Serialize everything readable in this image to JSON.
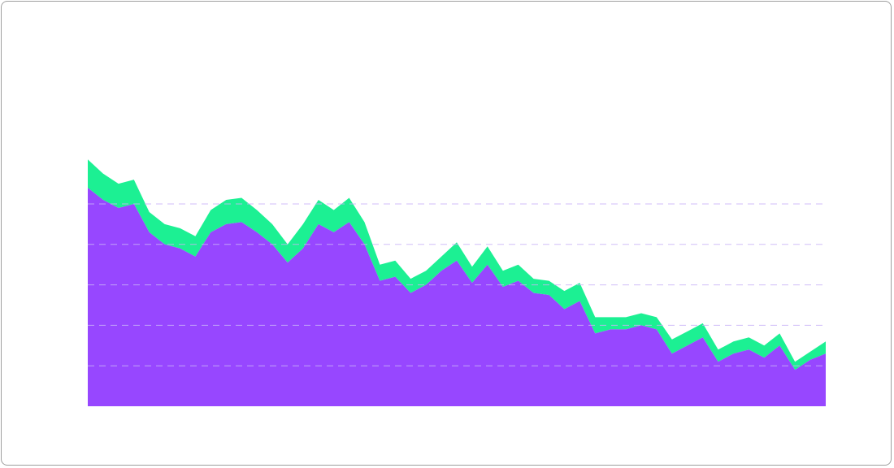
{
  "chart_data": {
    "type": "area",
    "stacked": true,
    "title": "",
    "xlabel": "",
    "ylabel": "",
    "grid": true,
    "legend": "none",
    "colors": {
      "bottom_series": "#9747ff",
      "top_series": "#1cf093",
      "gridline": "#c9b3f7",
      "frame_border": "#9e9e9e",
      "background": "#ffffff"
    },
    "x": [
      0,
      1,
      2,
      3,
      4,
      5,
      6,
      7,
      8,
      9,
      10,
      11,
      12,
      13,
      14,
      15,
      16,
      17,
      18,
      19,
      20,
      21,
      22,
      23,
      24,
      25,
      26,
      27,
      28,
      29,
      30,
      31,
      32,
      33,
      34,
      35,
      36,
      37,
      38,
      39,
      40,
      41,
      42,
      43,
      44,
      45,
      46,
      47,
      48
    ],
    "ylim": [
      0,
      10
    ],
    "gridlines": [
      1,
      2,
      3,
      4,
      5
    ],
    "series": [
      {
        "values": [
          5.4,
          5.1,
          4.9,
          5.0,
          4.3,
          4.0,
          3.9,
          3.7,
          4.3,
          4.5,
          4.55,
          4.3,
          4.0,
          3.55,
          3.9,
          4.5,
          4.3,
          4.55,
          4.0,
          3.1,
          3.2,
          2.8,
          3.0,
          3.35,
          3.6,
          3.05,
          3.5,
          2.95,
          3.1,
          2.8,
          2.75,
          2.4,
          2.6,
          1.8,
          1.9,
          1.9,
          2.0,
          1.9,
          1.3,
          1.5,
          1.7,
          1.1,
          1.3,
          1.4,
          1.2,
          1.5,
          0.9,
          1.15,
          1.3
        ]
      },
      {
        "values": [
          0.7,
          0.65,
          0.6,
          0.6,
          0.5,
          0.5,
          0.5,
          0.5,
          0.55,
          0.6,
          0.6,
          0.55,
          0.5,
          0.45,
          0.6,
          0.6,
          0.55,
          0.6,
          0.55,
          0.4,
          0.4,
          0.35,
          0.35,
          0.35,
          0.45,
          0.4,
          0.45,
          0.4,
          0.4,
          0.35,
          0.35,
          0.45,
          0.45,
          0.4,
          0.3,
          0.3,
          0.3,
          0.3,
          0.35,
          0.35,
          0.35,
          0.3,
          0.3,
          0.3,
          0.3,
          0.3,
          0.2,
          0.2,
          0.3
        ]
      }
    ]
  }
}
